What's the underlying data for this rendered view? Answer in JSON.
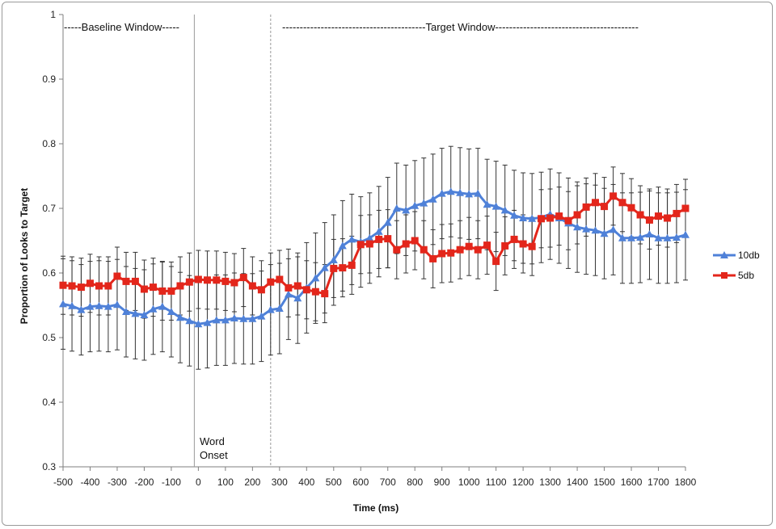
{
  "chart_data": {
    "type": "line",
    "title": "",
    "xlabel": "Time (ms)",
    "ylabel": "Proportion of Looks to Target",
    "xlim": [
      -500,
      1800
    ],
    "ylim": [
      0.3,
      1
    ],
    "x_ticks": [
      -500,
      -400,
      -300,
      -200,
      -100,
      0,
      100,
      200,
      300,
      400,
      500,
      600,
      700,
      800,
      900,
      1000,
      1100,
      1200,
      1300,
      1400,
      1500,
      1600,
      1700,
      1800
    ],
    "y_ticks": [
      0.3,
      0.4,
      0.5,
      0.6,
      0.7,
      0.8,
      0.9,
      1
    ],
    "y_tick_labels": [
      "0.3",
      "0.4",
      "0.5",
      "0.6",
      "0.7",
      "0.8",
      "0.9",
      "1"
    ],
    "grid": false,
    "legend_position": "right",
    "x": [
      -500,
      -467,
      -433,
      -400,
      -367,
      -333,
      -300,
      -267,
      -233,
      -200,
      -167,
      -133,
      -100,
      -67,
      -33,
      0,
      33,
      67,
      100,
      133,
      167,
      200,
      233,
      267,
      300,
      333,
      367,
      400,
      433,
      467,
      500,
      533,
      567,
      600,
      633,
      667,
      700,
      733,
      767,
      800,
      833,
      867,
      900,
      933,
      967,
      1000,
      1033,
      1067,
      1100,
      1133,
      1167,
      1200,
      1233,
      1267,
      1300,
      1333,
      1367,
      1400,
      1433,
      1467,
      1500,
      1533,
      1567,
      1600,
      1633,
      1667,
      1700,
      1733,
      1767,
      1800
    ],
    "series": [
      {
        "name": "10db",
        "color": "#4f81d8",
        "marker": "triangle",
        "values": [
          0.552,
          0.549,
          0.543,
          0.548,
          0.549,
          0.548,
          0.551,
          0.54,
          0.537,
          0.535,
          0.544,
          0.548,
          0.54,
          0.531,
          0.526,
          0.521,
          0.523,
          0.527,
          0.527,
          0.53,
          0.529,
          0.529,
          0.533,
          0.543,
          0.545,
          0.567,
          0.561,
          0.577,
          0.592,
          0.608,
          0.62,
          0.642,
          0.652,
          0.648,
          0.654,
          0.664,
          0.678,
          0.7,
          0.697,
          0.704,
          0.708,
          0.714,
          0.723,
          0.726,
          0.724,
          0.722,
          0.723,
          0.706,
          0.703,
          0.697,
          0.689,
          0.685,
          0.684,
          0.686,
          0.691,
          0.685,
          0.677,
          0.671,
          0.668,
          0.666,
          0.661,
          0.667,
          0.654,
          0.654,
          0.655,
          0.66,
          0.654,
          0.654,
          0.655,
          0.659
        ]
      },
      {
        "name": "5db",
        "color": "#e3261b",
        "marker": "square",
        "values": [
          0.581,
          0.58,
          0.578,
          0.584,
          0.58,
          0.58,
          0.595,
          0.587,
          0.587,
          0.575,
          0.578,
          0.572,
          0.572,
          0.58,
          0.586,
          0.59,
          0.589,
          0.589,
          0.587,
          0.585,
          0.593,
          0.58,
          0.574,
          0.586,
          0.59,
          0.577,
          0.58,
          0.574,
          0.571,
          0.568,
          0.607,
          0.608,
          0.612,
          0.644,
          0.645,
          0.652,
          0.653,
          0.636,
          0.645,
          0.65,
          0.636,
          0.622,
          0.63,
          0.631,
          0.636,
          0.641,
          0.636,
          0.643,
          0.618,
          0.642,
          0.652,
          0.645,
          0.641,
          0.684,
          0.685,
          0.688,
          0.681,
          0.69,
          0.702,
          0.709,
          0.703,
          0.719,
          0.709,
          0.701,
          0.69,
          0.682,
          0.688,
          0.685,
          0.692,
          0.7
        ]
      }
    ],
    "error_bars": {
      "10db": [
        0.07,
        0.07,
        0.07,
        0.07,
        0.07,
        0.07,
        0.07,
        0.07,
        0.07,
        0.07,
        0.07,
        0.07,
        0.07,
        0.07,
        0.07,
        0.07,
        0.07,
        0.07,
        0.07,
        0.07,
        0.07,
        0.07,
        0.07,
        0.07,
        0.07,
        0.07,
        0.07,
        0.07,
        0.07,
        0.07,
        0.07,
        0.07,
        0.07,
        0.07,
        0.07,
        0.07,
        0.07,
        0.07,
        0.07,
        0.07,
        0.07,
        0.07,
        0.07,
        0.07,
        0.07,
        0.07,
        0.07,
        0.07,
        0.07,
        0.07,
        0.07,
        0.07,
        0.07,
        0.07,
        0.07,
        0.07,
        0.07,
        0.07,
        0.07,
        0.07,
        0.07,
        0.07,
        0.07,
        0.07,
        0.07,
        0.07,
        0.07,
        0.07,
        0.07,
        0.07
      ],
      "5db": [
        0.045,
        0.045,
        0.045,
        0.045,
        0.045,
        0.045,
        0.045,
        0.045,
        0.045,
        0.045,
        0.045,
        0.045,
        0.045,
        0.045,
        0.045,
        0.045,
        0.045,
        0.045,
        0.045,
        0.045,
        0.045,
        0.045,
        0.045,
        0.045,
        0.045,
        0.045,
        0.045,
        0.045,
        0.045,
        0.045,
        0.045,
        0.045,
        0.045,
        0.045,
        0.045,
        0.045,
        0.045,
        0.045,
        0.045,
        0.045,
        0.045,
        0.045,
        0.045,
        0.045,
        0.045,
        0.045,
        0.045,
        0.045,
        0.045,
        0.045,
        0.045,
        0.045,
        0.045,
        0.045,
        0.045,
        0.045,
        0.045,
        0.045,
        0.045,
        0.045,
        0.045,
        0.045,
        0.045,
        0.045,
        0.045,
        0.045,
        0.045,
        0.045,
        0.045,
        0.045
      ]
    },
    "annotations": {
      "baseline_window": "-----Baseline Window-----",
      "target_window": "-----------------------------------------Target Window-----------------------------------------",
      "word_onset_line1": "Word",
      "word_onset_line2": "Onset",
      "word_onset_x": 0,
      "target_window_start_x": 300
    }
  }
}
